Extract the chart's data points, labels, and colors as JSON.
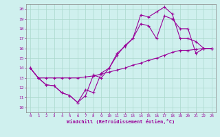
{
  "xlabel": "Windchill (Refroidissement éolien,°C)",
  "background_color": "#cff0ee",
  "grid_color": "#aad8cc",
  "line_color": "#990099",
  "spine_color": "#888888",
  "xlim": [
    -0.5,
    23.5
  ],
  "ylim": [
    9.5,
    20.5
  ],
  "xticks": [
    0,
    1,
    2,
    3,
    4,
    5,
    6,
    7,
    8,
    9,
    10,
    11,
    12,
    13,
    14,
    15,
    16,
    17,
    18,
    19,
    20,
    21,
    22,
    23
  ],
  "yticks": [
    10,
    11,
    12,
    13,
    14,
    15,
    16,
    17,
    18,
    19,
    20
  ],
  "line1_x": [
    0,
    1,
    2,
    3,
    4,
    5,
    6,
    7,
    8,
    9,
    10,
    11,
    12,
    13,
    14,
    15,
    16,
    17,
    18,
    19,
    20,
    21,
    22,
    23
  ],
  "line1_y": [
    14,
    13,
    12.3,
    12.2,
    11.5,
    11.2,
    10.5,
    11.2,
    13.3,
    13.0,
    14.0,
    15.5,
    16.2,
    17.0,
    19.4,
    19.2,
    19.7,
    20.2,
    19.5,
    17.0,
    17.0,
    16.7,
    16.0,
    16.0
  ],
  "line2_x": [
    0,
    1,
    2,
    3,
    4,
    5,
    6,
    7,
    8,
    9,
    10,
    11,
    12,
    13,
    14,
    15,
    16,
    17,
    18,
    19,
    20,
    21,
    22,
    23
  ],
  "line2_y": [
    14,
    13,
    12.3,
    12.2,
    11.5,
    11.2,
    10.5,
    11.8,
    11.5,
    13.5,
    14.0,
    15.3,
    16.3,
    17.0,
    18.5,
    18.3,
    17.0,
    19.3,
    19.0,
    18.0,
    18.0,
    15.5,
    16.0,
    16.0
  ],
  "line3_x": [
    0,
    1,
    2,
    3,
    4,
    5,
    6,
    7,
    8,
    9,
    10,
    11,
    12,
    13,
    14,
    15,
    16,
    17,
    18,
    19,
    20,
    21,
    22,
    23
  ],
  "line3_y": [
    14,
    13,
    13,
    13,
    13,
    13,
    13,
    13.1,
    13.2,
    13.4,
    13.6,
    13.8,
    14.0,
    14.3,
    14.5,
    14.8,
    15.0,
    15.3,
    15.6,
    15.8,
    15.8,
    15.9,
    16.0,
    16.0
  ]
}
